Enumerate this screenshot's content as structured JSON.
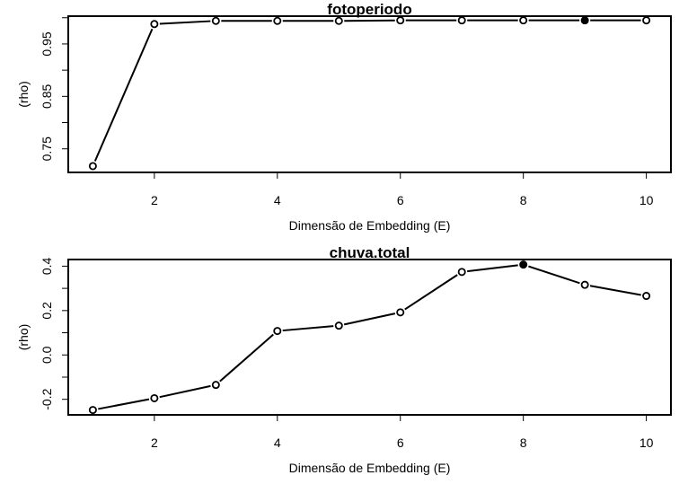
{
  "chart_data": [
    {
      "type": "line",
      "title": "fotoperiodo",
      "xlabel": "Dimensão de Embedding (E)",
      "ylabel": "(rho)",
      "x": [
        1,
        2,
        3,
        4,
        5,
        6,
        7,
        8,
        9,
        10
      ],
      "series": [
        {
          "values": [
            0.717,
            0.988,
            0.994,
            0.994,
            0.994,
            0.995,
            0.995,
            0.995,
            0.995,
            0.995
          ]
        }
      ],
      "highlight_index": 8,
      "xlim": [
        0.6,
        10.4
      ],
      "ylim": [
        0.705,
        1.003
      ],
      "xticks": [
        "2",
        "4",
        "6",
        "8",
        "10"
      ],
      "xtick_values": [
        2,
        4,
        6,
        8,
        10
      ],
      "yticks": [
        "0.75",
        "0.85",
        "0.95"
      ],
      "ytick_values": [
        0.75,
        0.85,
        0.95
      ],
      "yminor_values": [
        0.8,
        0.9,
        1.0
      ],
      "grid": false
    },
    {
      "type": "line",
      "title": "chuva.total",
      "xlabel": "Dimensão de Embedding (E)",
      "ylabel": "(rho)",
      "x": [
        1,
        2,
        3,
        4,
        5,
        6,
        7,
        8,
        9,
        10
      ],
      "series": [
        {
          "values": [
            -0.248,
            -0.195,
            -0.135,
            0.108,
            0.132,
            0.192,
            0.374,
            0.407,
            0.316,
            0.266
          ]
        }
      ],
      "highlight_index": 7,
      "xlim": [
        0.6,
        10.4
      ],
      "ylim": [
        -0.27,
        0.43
      ],
      "xticks": [
        "2",
        "4",
        "6",
        "8",
        "10"
      ],
      "xtick_values": [
        2,
        4,
        6,
        8,
        10
      ],
      "yticks": [
        "-0.2",
        "0.0",
        "0.2",
        "0.4"
      ],
      "ytick_values": [
        -0.2,
        0.0,
        0.2,
        0.4
      ],
      "yminor_values": [
        -0.1,
        0.1,
        0.3
      ],
      "grid": false
    }
  ]
}
